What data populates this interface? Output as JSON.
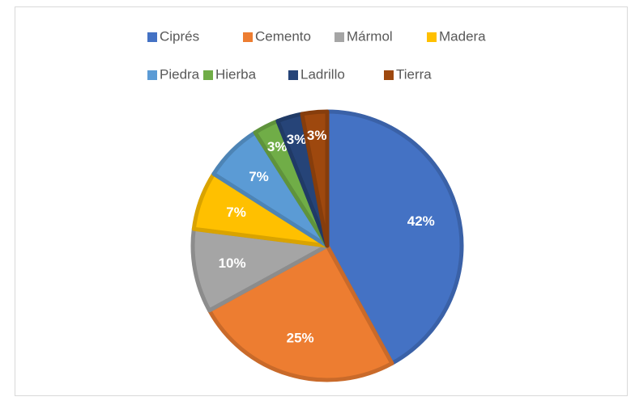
{
  "chart_data": {
    "type": "pie",
    "categories": [
      "Ciprés",
      "Cemento",
      "Mármol",
      "Madera",
      "Piedra",
      "Hierba",
      "Ladrillo",
      "Tierra"
    ],
    "values": [
      42,
      25,
      10,
      7,
      7,
      3,
      3,
      3
    ],
    "value_labels": [
      "42%",
      "25%",
      "10%",
      "7%",
      "7%",
      "3%",
      "3%",
      "3%"
    ],
    "colors": [
      "#4472c4",
      "#ed7d31",
      "#a5a5a5",
      "#ffc000",
      "#5b9bd5",
      "#70ad47",
      "#264478",
      "#9e480e"
    ],
    "legend": "top"
  }
}
